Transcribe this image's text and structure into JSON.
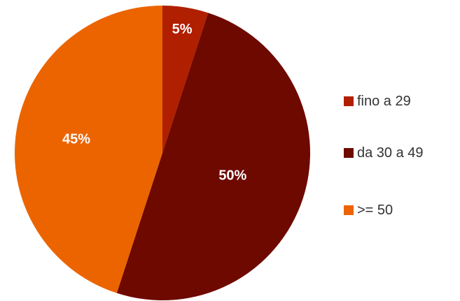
{
  "chart_data": {
    "type": "pie",
    "title": "",
    "categories": [
      "fino a 29",
      "da 30 a 49",
      ">= 50"
    ],
    "values": [
      5,
      50,
      45
    ],
    "data_labels": [
      "5%",
      "50%",
      "45%"
    ],
    "colors": [
      "#b01f00",
      "#6e0900",
      "#ec6400"
    ],
    "start_angle_deg": 0,
    "direction": "clockwise",
    "legend_position": "right"
  }
}
